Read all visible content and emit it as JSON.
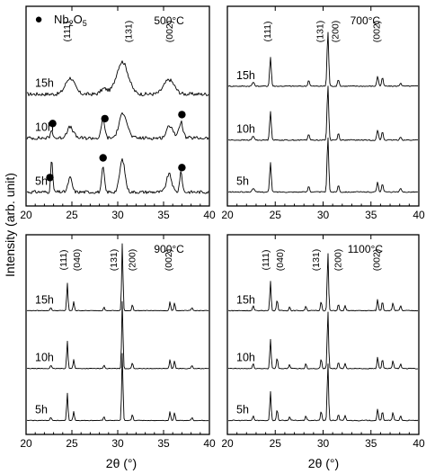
{
  "figure": {
    "ylabel": "Intensity (arb. unit)",
    "xlabel": "2θ (°)",
    "legend": {
      "marker": "●",
      "label_main": "Nb",
      "label_sub1": "2",
      "label_mid": "O",
      "label_sub2": "5"
    }
  },
  "chart_data": [
    {
      "type": "line",
      "temperature": "500°C",
      "xlim": [
        20,
        40
      ],
      "xticks": [
        20,
        25,
        30,
        35,
        40
      ],
      "series": [
        {
          "name": "15h",
          "peaks": [
            [
              24.8,
              0.45,
              0.7
            ],
            [
              30.5,
              0.9,
              0.9
            ],
            [
              35.6,
              0.4,
              0.8
            ],
            [
              28.5,
              0.15,
              0.5
            ]
          ],
          "noise": 0.1
        },
        {
          "name": "10h",
          "peaks": [
            [
              24.8,
              0.3,
              0.5
            ],
            [
              28.4,
              0.55,
              0.25
            ],
            [
              30.6,
              0.7,
              0.6
            ],
            [
              35.7,
              0.35,
              0.5
            ],
            [
              36.9,
              0.45,
              0.3
            ],
            [
              22.8,
              0.2,
              0.2
            ]
          ],
          "noise": 0.1
        },
        {
          "name": "5h",
          "peaks": [
            [
              22.8,
              0.9,
              0.15
            ],
            [
              24.8,
              0.4,
              0.3
            ],
            [
              28.4,
              0.7,
              0.2
            ],
            [
              30.5,
              0.9,
              0.4
            ],
            [
              35.6,
              0.5,
              0.4
            ],
            [
              36.9,
              0.55,
              0.2
            ]
          ],
          "noise": 0.09
        }
      ],
      "peak_labels": [
        {
          "x": 24.8,
          "label": "(111)"
        },
        {
          "x": 31.5,
          "label": "(131)"
        },
        {
          "x": 36.0,
          "label": "(002)"
        }
      ],
      "markers": [
        {
          "x": 28.6,
          "series": "10h"
        },
        {
          "x": 37.0,
          "series": "10h"
        },
        {
          "x": 22.9,
          "series": "10h"
        },
        {
          "x": 22.6,
          "series": "5h"
        },
        {
          "x": 28.4,
          "series": "5h"
        },
        {
          "x": 37.0,
          "series": "5h"
        }
      ]
    },
    {
      "type": "line",
      "temperature": "700°C",
      "xlim": [
        20,
        40
      ],
      "xticks": [
        20,
        25,
        30,
        35,
        40
      ],
      "series": [
        {
          "name": "15h",
          "peaks": [
            [
              22.7,
              0.12,
              0.15
            ],
            [
              24.5,
              0.85,
              0.12
            ],
            [
              28.5,
              0.18,
              0.12
            ],
            [
              30.5,
              1.6,
              0.12
            ],
            [
              31.6,
              0.2,
              0.12
            ],
            [
              35.7,
              0.3,
              0.12
            ],
            [
              36.2,
              0.25,
              0.12
            ],
            [
              38.1,
              0.1,
              0.12
            ]
          ],
          "noise": 0.03
        },
        {
          "name": "10h",
          "peaks": [
            [
              22.7,
              0.12,
              0.15
            ],
            [
              24.5,
              0.85,
              0.12
            ],
            [
              28.5,
              0.18,
              0.12
            ],
            [
              30.5,
              1.6,
              0.12
            ],
            [
              31.6,
              0.2,
              0.12
            ],
            [
              35.7,
              0.3,
              0.12
            ],
            [
              36.2,
              0.25,
              0.12
            ],
            [
              38.1,
              0.1,
              0.12
            ]
          ],
          "noise": 0.03
        },
        {
          "name": "5h",
          "peaks": [
            [
              22.7,
              0.12,
              0.15
            ],
            [
              24.5,
              0.85,
              0.12
            ],
            [
              28.5,
              0.18,
              0.12
            ],
            [
              30.5,
              1.6,
              0.12
            ],
            [
              31.6,
              0.2,
              0.12
            ],
            [
              35.7,
              0.3,
              0.12
            ],
            [
              36.2,
              0.25,
              0.12
            ],
            [
              38.1,
              0.1,
              0.12
            ]
          ],
          "noise": 0.03
        }
      ],
      "peak_labels": [
        {
          "x": 24.5,
          "label": "(111)"
        },
        {
          "x": 30.0,
          "label": "(131)"
        },
        {
          "x": 31.6,
          "label": "(200)"
        },
        {
          "x": 35.9,
          "label": "(002)"
        }
      ],
      "markers": []
    },
    {
      "type": "line",
      "temperature": "900°C",
      "xlim": [
        20,
        40
      ],
      "xticks": [
        20,
        25,
        30,
        35,
        40
      ],
      "series": [
        {
          "name": "15h",
          "peaks": [
            [
              22.7,
              0.1,
              0.12
            ],
            [
              24.5,
              0.9,
              0.1
            ],
            [
              25.2,
              0.3,
              0.1
            ],
            [
              28.5,
              0.12,
              0.1
            ],
            [
              30.5,
              2.2,
              0.1
            ],
            [
              31.6,
              0.2,
              0.1
            ],
            [
              35.7,
              0.3,
              0.1
            ],
            [
              36.2,
              0.25,
              0.1
            ],
            [
              38.1,
              0.1,
              0.1
            ]
          ],
          "noise": 0.02
        },
        {
          "name": "10h",
          "peaks": [
            [
              22.7,
              0.1,
              0.12
            ],
            [
              24.5,
              0.9,
              0.1
            ],
            [
              25.2,
              0.3,
              0.1
            ],
            [
              28.5,
              0.12,
              0.1
            ],
            [
              30.5,
              2.2,
              0.1
            ],
            [
              31.6,
              0.2,
              0.1
            ],
            [
              35.7,
              0.3,
              0.1
            ],
            [
              36.2,
              0.25,
              0.1
            ],
            [
              38.1,
              0.1,
              0.1
            ]
          ],
          "noise": 0.02
        },
        {
          "name": "5h",
          "peaks": [
            [
              22.7,
              0.1,
              0.12
            ],
            [
              24.5,
              0.9,
              0.1
            ],
            [
              25.2,
              0.3,
              0.1
            ],
            [
              28.5,
              0.12,
              0.1
            ],
            [
              30.5,
              2.2,
              0.1
            ],
            [
              31.6,
              0.2,
              0.1
            ],
            [
              35.7,
              0.3,
              0.1
            ],
            [
              36.2,
              0.25,
              0.1
            ],
            [
              38.1,
              0.1,
              0.1
            ]
          ],
          "noise": 0.02
        }
      ],
      "peak_labels": [
        {
          "x": 24.4,
          "label": "(111)"
        },
        {
          "x": 25.9,
          "label": "(040)"
        },
        {
          "x": 29.9,
          "label": "(131)"
        },
        {
          "x": 31.9,
          "label": "(200)"
        },
        {
          "x": 35.9,
          "label": "(002)"
        }
      ],
      "markers": []
    },
    {
      "type": "line",
      "temperature": "1100°C",
      "xlim": [
        20,
        40
      ],
      "xticks": [
        20,
        25,
        30,
        35,
        40
      ],
      "series": [
        {
          "name": "15h",
          "peaks": [
            [
              22.7,
              0.15,
              0.1
            ],
            [
              24.5,
              0.9,
              0.1
            ],
            [
              25.2,
              0.35,
              0.1
            ],
            [
              26.5,
              0.12,
              0.1
            ],
            [
              28.2,
              0.15,
              0.1
            ],
            [
              29.8,
              0.3,
              0.1
            ],
            [
              30.5,
              1.8,
              0.1
            ],
            [
              31.6,
              0.2,
              0.1
            ],
            [
              32.3,
              0.15,
              0.1
            ],
            [
              35.7,
              0.35,
              0.1
            ],
            [
              36.2,
              0.3,
              0.1
            ],
            [
              37.3,
              0.25,
              0.1
            ],
            [
              38.1,
              0.15,
              0.1
            ]
          ],
          "noise": 0.025
        },
        {
          "name": "10h",
          "peaks": [
            [
              22.7,
              0.15,
              0.1
            ],
            [
              24.5,
              0.9,
              0.1
            ],
            [
              25.2,
              0.35,
              0.1
            ],
            [
              26.5,
              0.12,
              0.1
            ],
            [
              28.2,
              0.15,
              0.1
            ],
            [
              29.8,
              0.3,
              0.1
            ],
            [
              30.5,
              1.8,
              0.1
            ],
            [
              31.6,
              0.2,
              0.1
            ],
            [
              32.3,
              0.15,
              0.1
            ],
            [
              35.7,
              0.35,
              0.1
            ],
            [
              36.2,
              0.3,
              0.1
            ],
            [
              37.3,
              0.25,
              0.1
            ],
            [
              38.1,
              0.15,
              0.1
            ]
          ],
          "noise": 0.025
        },
        {
          "name": "5h",
          "peaks": [
            [
              22.7,
              0.15,
              0.1
            ],
            [
              24.5,
              0.9,
              0.1
            ],
            [
              25.2,
              0.35,
              0.1
            ],
            [
              26.5,
              0.12,
              0.1
            ],
            [
              28.2,
              0.15,
              0.1
            ],
            [
              29.8,
              0.3,
              0.1
            ],
            [
              30.5,
              1.8,
              0.1
            ],
            [
              31.6,
              0.2,
              0.1
            ],
            [
              32.3,
              0.15,
              0.1
            ],
            [
              35.7,
              0.35,
              0.1
            ],
            [
              36.2,
              0.3,
              0.1
            ],
            [
              37.3,
              0.25,
              0.1
            ],
            [
              38.1,
              0.15,
              0.1
            ]
          ],
          "noise": 0.025
        }
      ],
      "peak_labels": [
        {
          "x": 24.3,
          "label": "(111)"
        },
        {
          "x": 25.8,
          "label": "(040)"
        },
        {
          "x": 29.6,
          "label": "(131)"
        },
        {
          "x": 31.9,
          "label": "(200)"
        },
        {
          "x": 35.9,
          "label": "(002)"
        }
      ],
      "markers": []
    }
  ]
}
